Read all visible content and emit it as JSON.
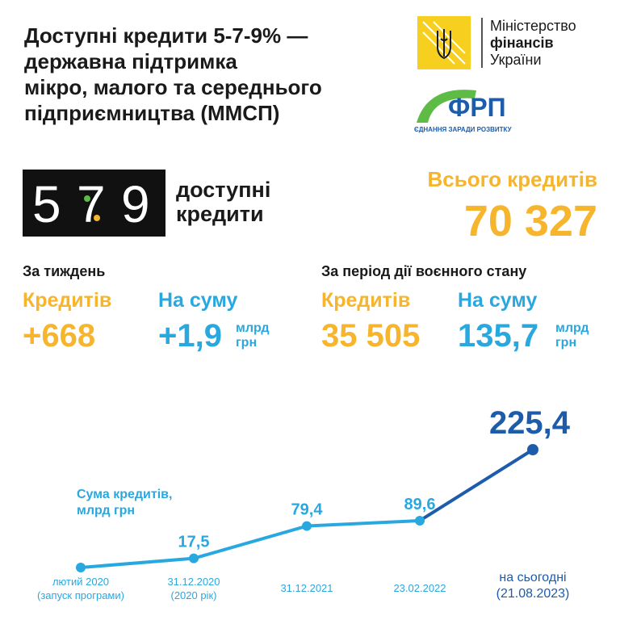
{
  "header": {
    "title": "Доступні кредити 5-7-9% —\nдержавна підтримка\nмікро, малого та середнього\nпідприємництва (ММСП)",
    "ministry": [
      "Міністерство",
      "фінансів",
      "України"
    ],
    "frp": {
      "name": "ФРП",
      "motto": "ЄДНАННЯ ЗАРАДИ РОЗВИТКУ"
    }
  },
  "program": {
    "logo": [
      "5",
      "7",
      "9"
    ],
    "caption": "доступні\nкредити"
  },
  "total": {
    "label": "Всього кредитів",
    "value": "70 327"
  },
  "week": {
    "title": "За тиждень",
    "count_label": "Кредитів",
    "count": "+668",
    "sum_label": "На суму",
    "sum": "+1,9",
    "unit": "млрд\nгрн"
  },
  "war": {
    "title": "За період дії воєнного стану",
    "count_label": "Кредитів",
    "count": "35 505",
    "sum_label": "На суму",
    "sum": "135,7",
    "unit": "млрд\nгрн"
  },
  "chart_data": {
    "type": "line",
    "y_label": "Сума кредитів,\nмлрд грн",
    "categories": [
      "лютий 2020\n(запуск програми)",
      "31.12.2020\n(2020 рік)",
      "31.12.2021",
      "23.02.2022",
      "на сьогодні\n(21.08.2023)"
    ],
    "series": [
      {
        "name": null,
        "color": "#29a8e0",
        "last_color": "#1c5cab",
        "values": [
          0,
          17.5,
          79.4,
          89.6,
          225.4
        ],
        "value_labels": [
          null,
          "17,5",
          "79,4",
          "89,6",
          "225,4"
        ]
      }
    ]
  }
}
